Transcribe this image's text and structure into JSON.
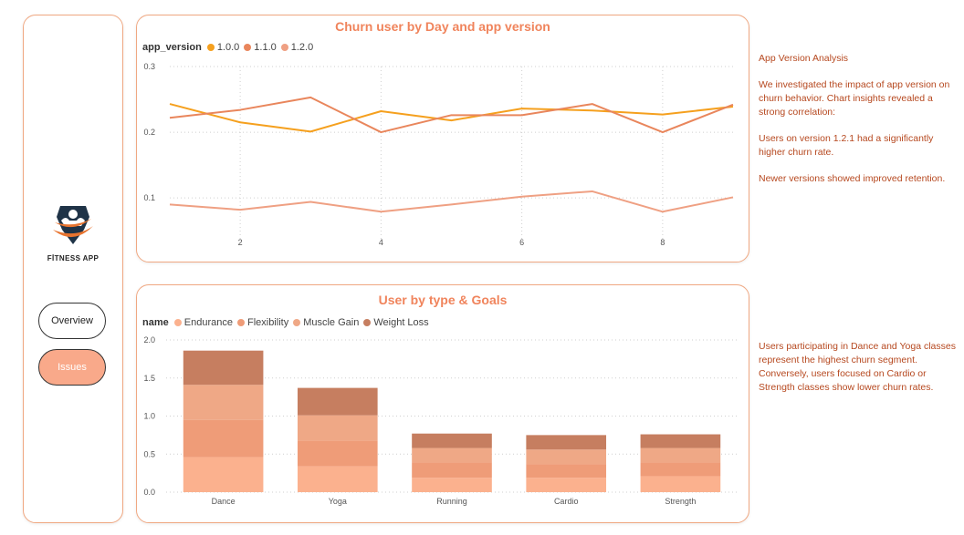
{
  "sidebar": {
    "logo_text": "FİTNESS APP",
    "nav": [
      {
        "label": "Overview",
        "active": false
      },
      {
        "label": "Issues",
        "active": true
      }
    ]
  },
  "colors": {
    "accent": "#f0845c",
    "border": "#f0a882",
    "note_text": "#b6481f",
    "active_button": "#f9a98a"
  },
  "chart1": {
    "title": "Churn user by Day and app version",
    "legend_title": "app_version",
    "series": [
      {
        "name": "1.0.0",
        "color": "#f5a01e"
      },
      {
        "name": "1.1.0",
        "color": "#e9865c"
      },
      {
        "name": "1.2.0",
        "color": "#efa083"
      }
    ]
  },
  "chart2": {
    "title": "User by type & Goals",
    "legend_title": "name",
    "series": [
      {
        "name": "Endurance",
        "color": "#fbb18e"
      },
      {
        "name": "Flexibility",
        "color": "#ef9c78"
      },
      {
        "name": "Muscle Gain",
        "color": "#efa886"
      },
      {
        "name": "Weight Loss",
        "color": "#c67e60"
      }
    ]
  },
  "notes": {
    "top": [
      "App Version Analysis",
      "We investigated the impact of app version on churn behavior. Chart insights revealed a strong correlation:",
      "Users on version 1.2.1 had a significantly higher churn rate.",
      "Newer versions showed improved retention."
    ],
    "bottom": "Users participating in Dance and Yoga classes represent the highest churn segment. Conversely, users focused on Cardio or Strength classes show lower churn rates."
  },
  "chart_data": [
    {
      "type": "line",
      "title": "Churn user by Day and app version",
      "legend_title": "app_version",
      "legend_position": "top-left",
      "grid": true,
      "x": [
        1,
        2,
        3,
        4,
        5,
        6,
        7,
        8,
        9
      ],
      "x_ticks": [
        "2",
        "4",
        "6",
        "8"
      ],
      "x_tick_values": [
        2,
        4,
        6,
        8
      ],
      "xlim": [
        1,
        9
      ],
      "ylim": [
        0.035,
        0.3
      ],
      "y_ticks": [
        "0.1",
        "0.2",
        "0.3"
      ],
      "y_tick_values": [
        0.1,
        0.2,
        0.3
      ],
      "series": [
        {
          "name": "1.0.0",
          "values": [
            0.243,
            0.215,
            0.201,
            0.232,
            0.218,
            0.236,
            0.233,
            0.227,
            0.239
          ]
        },
        {
          "name": "1.1.0",
          "values": [
            0.222,
            0.234,
            0.253,
            0.2,
            0.226,
            0.226,
            0.243,
            0.2,
            0.242
          ]
        },
        {
          "name": "1.2.0",
          "values": [
            0.09,
            0.082,
            0.094,
            0.079,
            0.09,
            0.102,
            0.11,
            0.079,
            0.101
          ]
        }
      ]
    },
    {
      "type": "bar",
      "stacked": true,
      "title": "User by type & Goals",
      "legend_title": "name",
      "legend_position": "top-left",
      "grid": true,
      "categories": [
        "Dance",
        "Yoga",
        "Running",
        "Cardio",
        "Strength"
      ],
      "ylim": [
        0,
        2.0
      ],
      "y_ticks": [
        "0.0",
        "0.5",
        "1.0",
        "1.5",
        "2.0"
      ],
      "y_tick_values": [
        0,
        0.5,
        1.0,
        1.5,
        2.0
      ],
      "series": [
        {
          "name": "Endurance",
          "values": [
            0.46,
            0.34,
            0.19,
            0.19,
            0.21
          ]
        },
        {
          "name": "Flexibility",
          "values": [
            0.49,
            0.34,
            0.2,
            0.18,
            0.18
          ]
        },
        {
          "name": "Muscle Gain",
          "values": [
            0.46,
            0.33,
            0.19,
            0.19,
            0.19
          ]
        },
        {
          "name": "Weight Loss",
          "values": [
            0.45,
            0.36,
            0.19,
            0.19,
            0.18
          ]
        }
      ]
    }
  ]
}
